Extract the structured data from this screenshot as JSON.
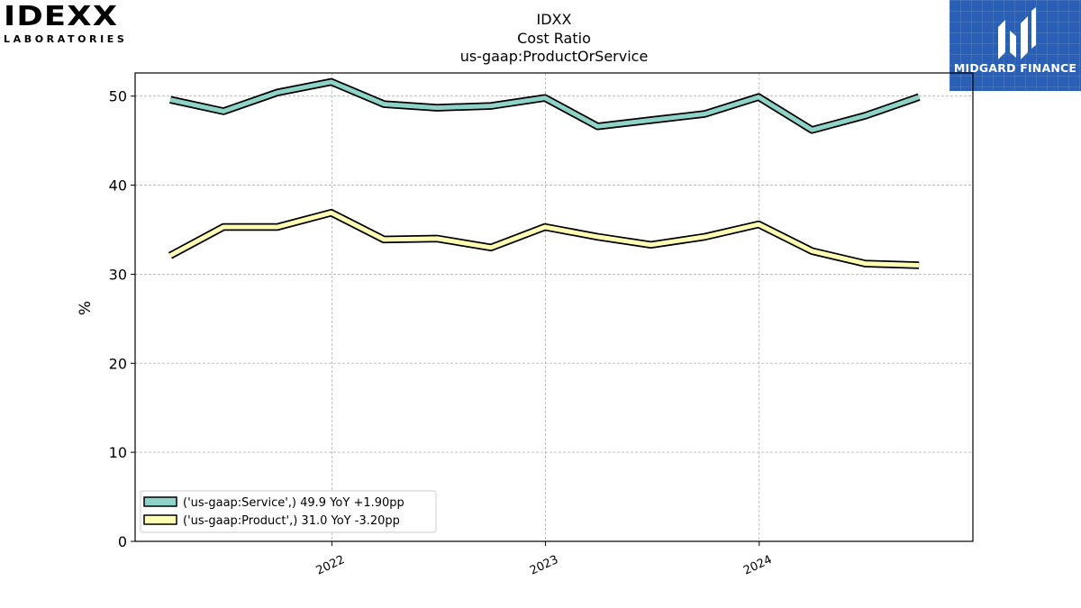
{
  "logos": {
    "left_brand": "IDEXX",
    "left_sub": "LABORATORIES",
    "right_name": "MIDGARD FINANCE"
  },
  "chart_data": {
    "type": "line",
    "title_lines": [
      "IDXX",
      "Cost Ratio",
      "us-gaap:ProductOrService"
    ],
    "xlabel": "",
    "ylabel": "%",
    "ylim": [
      0,
      52.6
    ],
    "yticks": [
      0,
      10,
      20,
      30,
      40,
      50
    ],
    "xlim": [
      "2021-01-30",
      "2024-12-31"
    ],
    "xticks": [
      {
        "date": "2022-01-01",
        "label": "2022"
      },
      {
        "date": "2023-01-01",
        "label": "2023"
      },
      {
        "date": "2024-01-01",
        "label": "2024"
      }
    ],
    "grid": true,
    "legend_position": "lower-left",
    "x": [
      "2021-03-31",
      "2021-06-30",
      "2021-09-30",
      "2021-12-31",
      "2022-03-31",
      "2022-06-30",
      "2022-09-30",
      "2022-12-31",
      "2023-03-31",
      "2023-06-30",
      "2023-09-30",
      "2023-12-31",
      "2024-03-31",
      "2024-06-30",
      "2024-09-30"
    ],
    "series": [
      {
        "name": "('us-gaap:Service',) 49.9 YoY +1.90pp",
        "color": "#8dd3c7",
        "values": [
          49.6,
          48.3,
          50.4,
          51.6,
          49.1,
          48.7,
          48.9,
          49.8,
          46.6,
          47.3,
          48.0,
          49.9,
          46.2,
          47.8,
          49.9
        ]
      },
      {
        "name": "('us-gaap:Product',) 31.0 YoY -3.20pp",
        "color": "#ffffb3",
        "values": [
          32.1,
          35.3,
          35.3,
          36.9,
          33.9,
          34.0,
          33.0,
          35.3,
          34.2,
          33.3,
          34.2,
          35.6,
          32.6,
          31.2,
          31.0
        ]
      }
    ]
  }
}
